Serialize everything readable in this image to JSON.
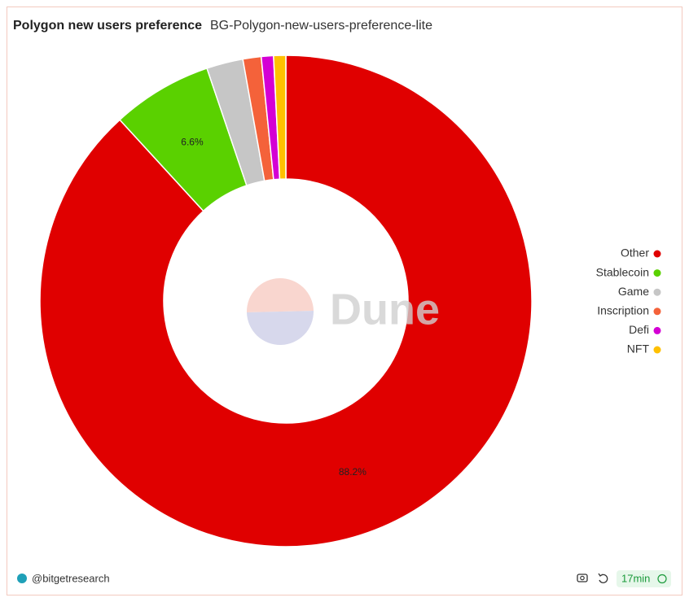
{
  "chart_data": {
    "type": "pie",
    "title": "Polygon new users preference",
    "subtitle": "BG-Polygon-new-users-preference-lite",
    "categories": [
      "Other",
      "Stablecoin",
      "Game",
      "Inscription",
      "Defi",
      "NFT"
    ],
    "values": [
      88.2,
      6.6,
      2.4,
      1.2,
      0.8,
      0.8
    ],
    "value_labels": [
      "88.2%",
      "6.6%",
      null,
      null,
      null,
      null
    ],
    "colors": [
      "#e00000",
      "#5ad100",
      "#c6c6c6",
      "#f4623a",
      "#d400d4",
      "#ffc000"
    ],
    "legend": "right",
    "watermark": "Dune"
  },
  "footer": {
    "author": "@bitgetresearch",
    "age": "17min"
  }
}
